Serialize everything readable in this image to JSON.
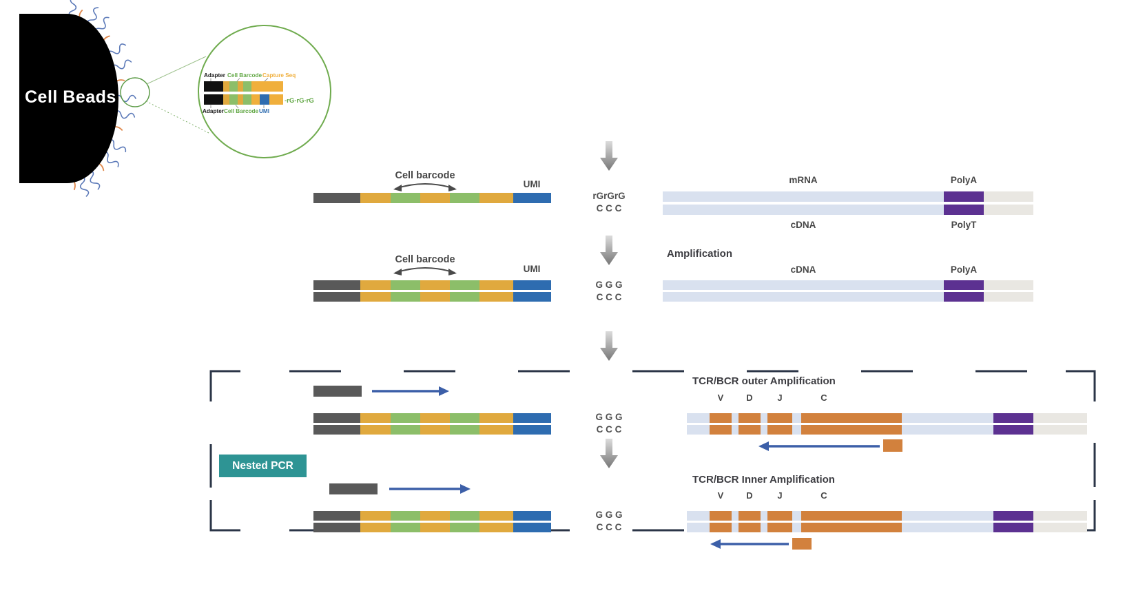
{
  "palette": {
    "adapter_gray": "#595959",
    "barcode_yellow": "#E0A93E",
    "barcode_green": "#8CBE69",
    "umi_blue": "#2E6CB0",
    "transcript_lightblue": "#D9E1EF",
    "polya_purple": "#5C3191",
    "tail_gray": "#E9E7E2",
    "vdjc_orange": "#D2813D",
    "primer_arrow_blue": "#3C5FA8",
    "nested_pcr_teal": "#2E9494",
    "dashed_box_navy": "#2B3547",
    "inset_circle_green": "#6FAB4E",
    "capture_seq_yellow": "#F0AF3C",
    "rg_text_green": "#61A744"
  },
  "bead": {
    "label": "Cell Beads"
  },
  "inset": {
    "adapter_top": "Adapter",
    "cell_barcode_top": "Cell Barcode",
    "capture_seq": "Capture Seq",
    "adapter_bottom": "Adapter",
    "cell_barcode_bottom": "Cell Barcode",
    "umi": "UMI",
    "rg_overhang": "-rG-rG-rG"
  },
  "step1": {
    "cell_barcode": "Cell barcode",
    "umi": "UMI",
    "rg": "rGrGrG",
    "ccc": "C C C",
    "mrna": "mRNA",
    "polya": "PolyA",
    "cdna": "cDNA",
    "polyt": "PolyT"
  },
  "step2": {
    "title": "Amplification",
    "cell_barcode": "Cell barcode",
    "umi": "UMI",
    "ggg": "G G G",
    "ccc": "C C C",
    "cdna": "cDNA",
    "polya": "PolyA"
  },
  "nested": {
    "label": "Nested PCR"
  },
  "step3": {
    "title": "TCR/BCR outer Amplification",
    "v": "V",
    "d": "D",
    "j": "J",
    "c": "C",
    "ggg": "G G G",
    "ccc": "C C C"
  },
  "step4": {
    "title": "TCR/BCR Inner Amplification",
    "v": "V",
    "d": "D",
    "j": "J",
    "c": "C",
    "ggg": "G G G",
    "ccc": "C C C"
  }
}
